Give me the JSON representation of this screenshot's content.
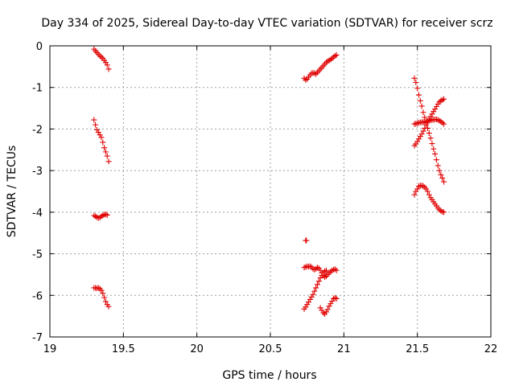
{
  "chart_data": {
    "type": "scatter",
    "title": "Day 334 of 2025, Sidereal Day-to-day VTEC variation (SDTVAR) for receiver scrz",
    "xlabel": "GPS time / hours",
    "ylabel": "SDTVAR / TECUs",
    "xlim": [
      19,
      22
    ],
    "ylim": [
      -7,
      0
    ],
    "xticks": [
      19,
      19.5,
      20,
      20.5,
      21,
      21.5,
      22
    ],
    "xtick_labels": [
      "19",
      "19.5",
      "20",
      "20.5",
      "21",
      "21.5",
      "22"
    ],
    "yticks": [
      0,
      -1,
      -2,
      -3,
      -4,
      -5,
      -6,
      -7
    ],
    "ytick_labels": [
      "0",
      "-1",
      "-2",
      "-3",
      "-4",
      "-5",
      "-6",
      "-7"
    ],
    "grid": true,
    "marker": "+",
    "color": "#e00000",
    "series": [
      {
        "name": "s1",
        "x": [
          19.3,
          19.31,
          19.32,
          19.33,
          19.34,
          19.35,
          19.36,
          19.37,
          19.38,
          19.39,
          19.4
        ],
        "y": [
          -0.08,
          -0.12,
          -0.16,
          -0.2,
          -0.24,
          -0.27,
          -0.3,
          -0.35,
          -0.4,
          -0.46,
          -0.56
        ]
      },
      {
        "name": "s2",
        "x": [
          19.3,
          19.31,
          19.32,
          19.33,
          19.34,
          19.35,
          19.36,
          19.37,
          19.38,
          19.39,
          19.4
        ],
        "y": [
          -1.78,
          -1.9,
          -2.02,
          -2.08,
          -2.14,
          -2.2,
          -2.32,
          -2.45,
          -2.55,
          -2.65,
          -2.78
        ]
      },
      {
        "name": "s3",
        "x": [
          19.3,
          19.31,
          19.32,
          19.33,
          19.34,
          19.35,
          19.36,
          19.37,
          19.38,
          19.39
        ],
        "y": [
          -4.08,
          -4.1,
          -4.12,
          -4.14,
          -4.13,
          -4.1,
          -4.08,
          -4.06,
          -4.05,
          -4.07
        ]
      },
      {
        "name": "s4",
        "x": [
          19.3,
          19.31,
          19.32,
          19.33,
          19.34,
          19.35,
          19.36,
          19.37,
          19.38,
          19.39,
          19.4
        ],
        "y": [
          -5.82,
          -5.82,
          -5.83,
          -5.82,
          -5.84,
          -5.88,
          -5.95,
          -6.05,
          -6.15,
          -6.22,
          -6.27
        ]
      },
      {
        "name": "s5",
        "x": [
          20.73,
          20.74,
          20.75,
          20.76,
          20.77,
          20.78,
          20.79,
          20.8,
          20.81,
          20.82,
          20.83,
          20.84,
          20.85,
          20.86,
          20.87,
          20.88,
          20.89,
          20.9,
          20.91,
          20.92,
          20.93,
          20.94,
          20.95
        ],
        "y": [
          -0.78,
          -0.82,
          -0.8,
          -0.75,
          -0.7,
          -0.66,
          -0.65,
          -0.66,
          -0.68,
          -0.64,
          -0.6,
          -0.56,
          -0.52,
          -0.48,
          -0.44,
          -0.4,
          -0.37,
          -0.35,
          -0.33,
          -0.3,
          -0.27,
          -0.24,
          -0.22
        ]
      },
      {
        "name": "s6",
        "x": [
          20.74,
          20.745
        ],
        "y": [
          -4.68,
          -4.68
        ]
      },
      {
        "name": "s7",
        "x": [
          20.73,
          20.74,
          20.75,
          20.76,
          20.77,
          20.78,
          20.79,
          20.8,
          20.81,
          20.82,
          20.83,
          20.84,
          20.85,
          20.86,
          20.87,
          20.88,
          20.89,
          20.9,
          20.91,
          20.92,
          20.93,
          20.94,
          20.95
        ],
        "y": [
          -5.33,
          -5.32,
          -5.3,
          -5.31,
          -5.3,
          -5.32,
          -5.36,
          -5.38,
          -5.36,
          -5.33,
          -5.35,
          -5.4,
          -5.46,
          -5.52,
          -5.56,
          -5.54,
          -5.5,
          -5.46,
          -5.43,
          -5.4,
          -5.38,
          -5.37,
          -5.4
        ]
      },
      {
        "name": "s8",
        "x": [
          20.73,
          20.74,
          20.75,
          20.76,
          20.77,
          20.78,
          20.79,
          20.8,
          20.81,
          20.82,
          20.83,
          20.84,
          20.85,
          20.86,
          20.87,
          20.88
        ],
        "y": [
          -6.33,
          -6.28,
          -6.22,
          -6.16,
          -6.1,
          -6.04,
          -5.98,
          -5.9,
          -5.82,
          -5.74,
          -5.66,
          -5.58,
          -5.52,
          -5.46,
          -5.42,
          -5.4
        ]
      },
      {
        "name": "s9",
        "x": [
          20.84,
          20.85,
          20.86,
          20.87,
          20.88,
          20.89,
          20.9,
          20.91,
          20.92,
          20.93,
          20.94,
          20.95
        ],
        "y": [
          -6.3,
          -6.36,
          -6.42,
          -6.45,
          -6.4,
          -6.34,
          -6.26,
          -6.2,
          -6.14,
          -6.08,
          -6.06,
          -6.08
        ]
      },
      {
        "name": "s10",
        "x": [
          21.48,
          21.49,
          21.5,
          21.51,
          21.52,
          21.53,
          21.54,
          21.55,
          21.56,
          21.57,
          21.58,
          21.59,
          21.6,
          21.61,
          21.62,
          21.63,
          21.64,
          21.65,
          21.66,
          21.67,
          21.68
        ],
        "y": [
          -0.78,
          -0.88,
          -1.02,
          -1.18,
          -1.32,
          -1.45,
          -1.6,
          -1.72,
          -1.85,
          -1.98,
          -2.1,
          -2.22,
          -2.35,
          -2.48,
          -2.6,
          -2.74,
          -2.88,
          -3.0,
          -3.1,
          -3.18,
          -3.27
        ]
      },
      {
        "name": "s11",
        "x": [
          21.48,
          21.49,
          21.5,
          21.51,
          21.52,
          21.53,
          21.54,
          21.55,
          21.56,
          21.57,
          21.58,
          21.59,
          21.6,
          21.61,
          21.62,
          21.63,
          21.64,
          21.65,
          21.66,
          21.67,
          21.68
        ],
        "y": [
          -2.4,
          -2.36,
          -2.3,
          -2.24,
          -2.18,
          -2.12,
          -2.05,
          -1.98,
          -1.9,
          -1.82,
          -1.76,
          -1.7,
          -1.64,
          -1.58,
          -1.52,
          -1.46,
          -1.4,
          -1.35,
          -1.32,
          -1.3,
          -1.28
        ]
      },
      {
        "name": "s12",
        "x": [
          21.48,
          21.49,
          21.5,
          21.51,
          21.52,
          21.53,
          21.54,
          21.55,
          21.56,
          21.57,
          21.58,
          21.59,
          21.6,
          21.61,
          21.62,
          21.63,
          21.64,
          21.65,
          21.66,
          21.67,
          21.68
        ],
        "y": [
          -1.88,
          -1.87,
          -1.86,
          -1.85,
          -1.84,
          -1.84,
          -1.83,
          -1.82,
          -1.82,
          -1.81,
          -1.8,
          -1.79,
          -1.78,
          -1.78,
          -1.77,
          -1.77,
          -1.78,
          -1.8,
          -1.82,
          -1.85,
          -1.88
        ]
      },
      {
        "name": "s13",
        "x": [
          21.48,
          21.49,
          21.5,
          21.51,
          21.52,
          21.53,
          21.54,
          21.55,
          21.56,
          21.57,
          21.58,
          21.59,
          21.6,
          21.61,
          21.62,
          21.63,
          21.64,
          21.65,
          21.66,
          21.67,
          21.68
        ],
        "y": [
          -3.58,
          -3.5,
          -3.44,
          -3.38,
          -3.36,
          -3.36,
          -3.37,
          -3.4,
          -3.44,
          -3.5,
          -3.58,
          -3.65,
          -3.7,
          -3.75,
          -3.8,
          -3.85,
          -3.9,
          -3.94,
          -3.97,
          -3.99,
          -4.0
        ]
      }
    ]
  }
}
